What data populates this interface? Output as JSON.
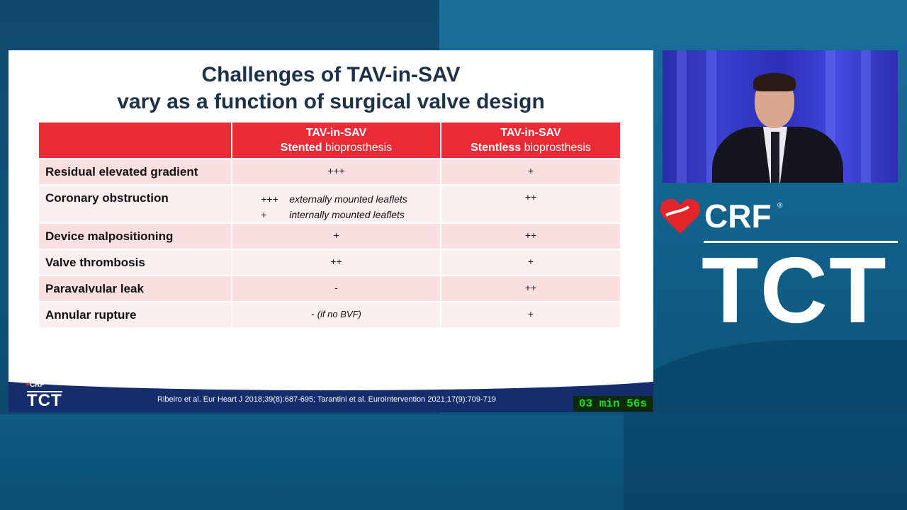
{
  "slide": {
    "title_line1": "Challenges of TAV-in-SAV",
    "title_line2": "vary as a function of surgical valve design",
    "table": {
      "header": {
        "col1_line1": "TAV-in-SAV",
        "col1_bold": "Stented",
        "col1_rest": " bioprosthesis",
        "col2_line1": "TAV-in-SAV",
        "col2_bold": "Stentless",
        "col2_rest": " bioprosthesis"
      },
      "rows": [
        {
          "label": "Residual elevated gradient",
          "stented": "+++",
          "stentless": "+"
        },
        {
          "label": "Coronary obstruction",
          "stented_a_sym": "+++",
          "stented_a_text": "externally mounted leaflets",
          "stented_b_sym": "+",
          "stented_b_text": "internally mounted leaflets",
          "stentless": "++"
        },
        {
          "label": "Device malpositioning",
          "stented": "+",
          "stentless": "++"
        },
        {
          "label": "Valve thrombosis",
          "stented": "++",
          "stentless": "+"
        },
        {
          "label": "Paravalvular leak",
          "stented": "-",
          "stentless": "++"
        },
        {
          "label": "Annular rupture",
          "stented": "-",
          "stented_note": "(if no BVF)",
          "stentless": "+"
        }
      ]
    },
    "footer": {
      "logo_crf": "CRF",
      "logo_tct": "TCT",
      "citation": "Ribeiro et al. Eur Heart J 2018;39(8):687-695; Tarantini et al. EuroIntervention 2021;17(9):709-719",
      "timer": "03 min 56s"
    }
  },
  "brand": {
    "crf": "CRF",
    "registered": "®",
    "tct": "TCT"
  },
  "colors": {
    "header_red": "#ea2a35",
    "title_navy": "#1d3148",
    "footer_navy": "#152c6d",
    "timer_green": "#19e019",
    "heart_red": "#e3242b"
  }
}
